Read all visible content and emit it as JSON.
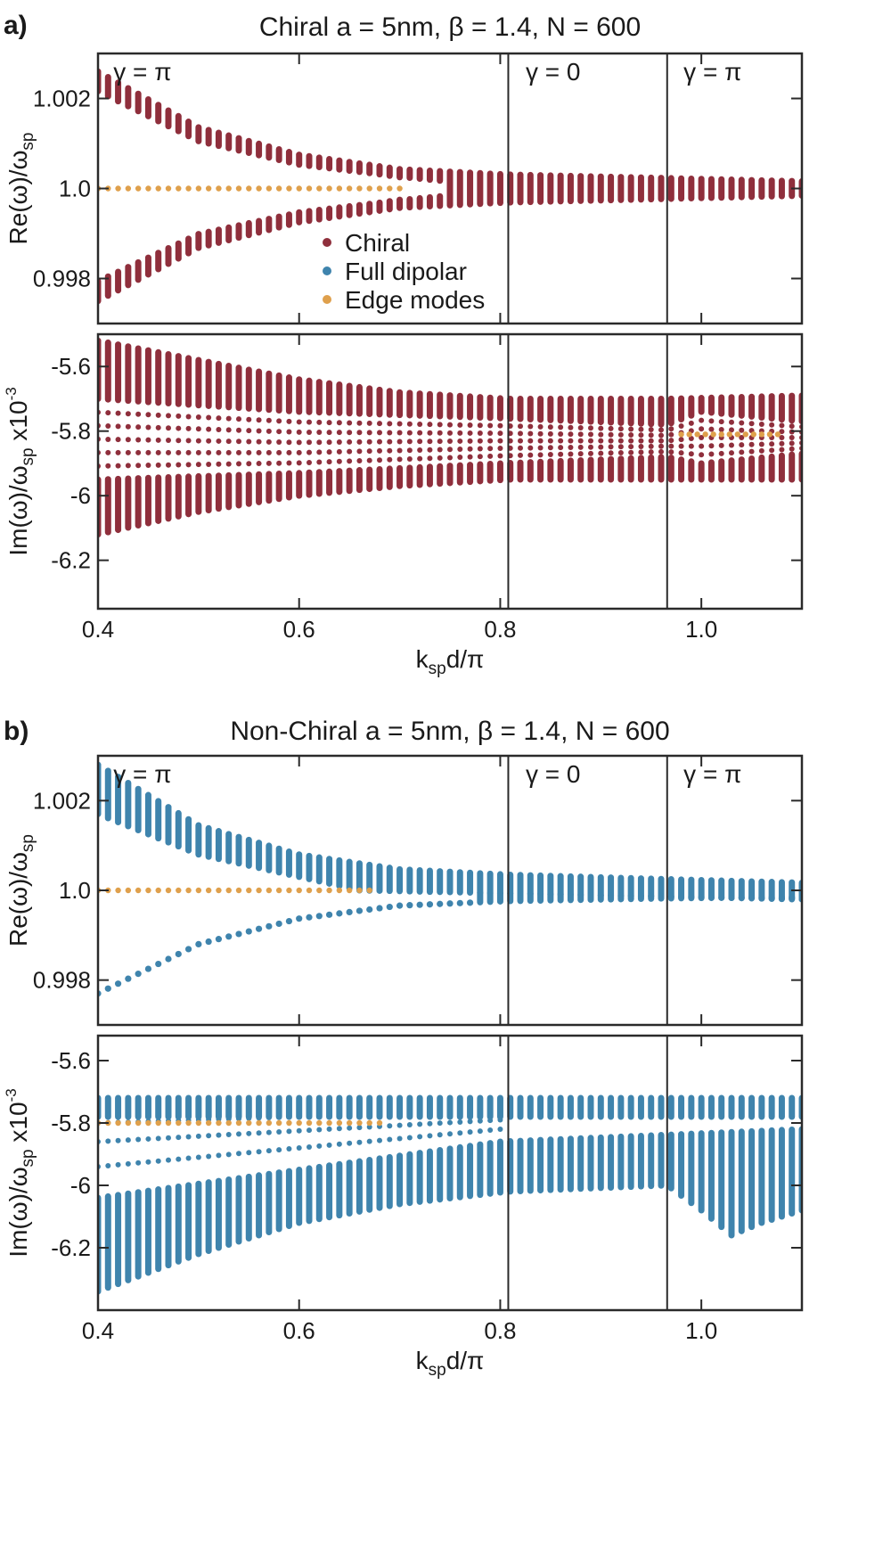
{
  "figure": {
    "panel_a_label": "a)",
    "panel_b_label": "b)"
  },
  "colors": {
    "chiral": "#8f2f3c",
    "full_dipolar": "#3f84ad",
    "edge_modes": "#dfa04c"
  },
  "chart_data": [
    {
      "id": "a_re",
      "type": "scatter",
      "title": "Chiral a = 5nm, β = 1.4, N = 600",
      "xlabel": "",
      "ylabel": "Re(ω)/ω",
      "ylabel_sub": "sp",
      "xlim": [
        0.4,
        1.1
      ],
      "ylim": [
        0.997,
        1.003
      ],
      "yticks": [
        0.998,
        1.0,
        1.002
      ],
      "ytick_labels": [
        "0.998",
        "1.0",
        "1.002"
      ],
      "vlines": [
        0.808,
        0.966
      ],
      "region_labels": [
        {
          "text": "γ = π",
          "x": 0.41
        },
        {
          "text": "γ = 0",
          "x": 0.82
        },
        {
          "text": "γ = π",
          "x": 0.977
        }
      ],
      "legend": [
        {
          "label": "Chiral",
          "color": "#8f2f3c"
        },
        {
          "label": "Full dipolar",
          "color": "#3f84ad"
        },
        {
          "label": "Edge modes",
          "color": "#dfa04c"
        }
      ],
      "series": [
        {
          "name": "Chiral",
          "color": "#8f2f3c",
          "style": "band",
          "x_range": [
            0.4,
            1.1
          ],
          "step": 0.01,
          "center": 1.0,
          "halfwidth_points": [
            [
              0.4,
              0.0026
            ],
            [
              0.5,
              0.00136
            ],
            [
              0.6,
              0.00075
            ],
            [
              0.7,
              0.00043
            ],
            [
              0.808,
              0.00031
            ],
            [
              0.95,
              0.00024
            ],
            [
              1.1,
              0.00016
            ]
          ],
          "lower_halfwidth_points": [
            [
              0.4,
              0.0025
            ],
            [
              0.5,
              0.00132
            ],
            [
              0.6,
              0.00075
            ],
            [
              0.7,
              0.00043
            ],
            [
              0.808,
              0.00031
            ],
            [
              0.95,
              0.00024
            ],
            [
              1.1,
              0.00016
            ]
          ],
          "gap_points": [
            [
              0.4,
              0.0018
            ],
            [
              0.5,
              0.0008
            ],
            [
              0.6,
              0.00035
            ],
            [
              0.7,
              0.00012
            ],
            [
              0.74,
              0.0
            ]
          ]
        },
        {
          "name": "Edge modes",
          "color": "#dfa04c",
          "style": "line",
          "x_range": [
            0.4,
            0.7
          ],
          "step": 0.01,
          "y": 1.0
        }
      ]
    },
    {
      "id": "a_im",
      "type": "scatter",
      "title": "",
      "xlabel": "k",
      "xlabel_sub": "sp",
      "xlabel_tail": "d/π",
      "ylabel": "Im(ω)/ω",
      "ylabel_sub": "sp",
      "ylabel_tail": " x10",
      "ylabel_sup": "-3",
      "xlim": [
        0.4,
        1.1
      ],
      "ylim": [
        -6.35,
        -5.5
      ],
      "xticks": [
        0.4,
        0.6,
        0.8,
        1.0
      ],
      "xtick_labels": [
        "0.4",
        "0.6",
        "0.8",
        "1.0"
      ],
      "yticks": [
        -6.2,
        -6.0,
        -5.8,
        -5.6
      ],
      "ytick_labels": [
        "-6.2",
        "-6",
        "-5.8",
        "-5.6"
      ],
      "vlines": [
        0.808,
        0.966
      ],
      "series": [
        {
          "name": "Chiral",
          "color": "#8f2f3c",
          "style": "imband",
          "x_range": [
            0.4,
            1.1
          ],
          "step": 0.01,
          "center": -5.83,
          "outer_top": [
            [
              0.4,
              -5.52
            ],
            [
              0.5,
              -5.58
            ],
            [
              0.6,
              -5.64
            ],
            [
              0.7,
              -5.68
            ],
            [
              0.808,
              -5.7
            ],
            [
              0.966,
              -5.7
            ],
            [
              1.1,
              -5.69
            ]
          ],
          "outer_bottom": [
            [
              0.4,
              -6.12
            ],
            [
              0.5,
              -6.05
            ],
            [
              0.6,
              -6.0
            ],
            [
              0.7,
              -5.97
            ],
            [
              0.808,
              -5.95
            ],
            [
              0.966,
              -5.95
            ],
            [
              1.1,
              -5.95
            ]
          ],
          "inner_top": [
            [
              0.4,
              -5.7
            ],
            [
              0.6,
              -5.74
            ],
            [
              0.8,
              -5.76
            ],
            [
              0.966,
              -5.78
            ],
            [
              1.0,
              -5.74
            ],
            [
              1.1,
              -5.77
            ]
          ],
          "inner_bottom": [
            [
              0.4,
              -5.95
            ],
            [
              0.6,
              -5.93
            ],
            [
              0.8,
              -5.9
            ],
            [
              0.966,
              -5.88
            ],
            [
              1.0,
              -5.9
            ],
            [
              1.1,
              -5.87
            ]
          ]
        },
        {
          "name": "Edge modes",
          "color": "#dfa04c",
          "style": "line",
          "x_range": [
            0.98,
            1.08
          ],
          "step": 0.008,
          "y": -5.81
        }
      ]
    },
    {
      "id": "b_re",
      "type": "scatter",
      "title": "Non-Chiral a = 5nm, β = 1.4, N = 600",
      "xlabel": "",
      "ylabel": "Re(ω)/ω",
      "ylabel_sub": "sp",
      "xlim": [
        0.4,
        1.1
      ],
      "ylim": [
        0.997,
        1.003
      ],
      "yticks": [
        0.998,
        1.0,
        1.002
      ],
      "ytick_labels": [
        "0.998",
        "1.0",
        "1.002"
      ],
      "vlines": [
        0.808,
        0.966
      ],
      "region_labels": [
        {
          "text": "γ = π",
          "x": 0.41
        },
        {
          "text": "γ = 0",
          "x": 0.82
        },
        {
          "text": "γ = π",
          "x": 0.977
        }
      ],
      "series": [
        {
          "name": "Full dipolar",
          "color": "#3f84ad",
          "style": "halfband",
          "x_range": [
            0.4,
            1.1
          ],
          "step": 0.01,
          "center": 1.0,
          "upper_outer": [
            [
              0.4,
              1.0028
            ],
            [
              0.5,
              1.00145
            ],
            [
              0.6,
              1.0008
            ],
            [
              0.7,
              1.00047
            ],
            [
              0.808,
              1.00035
            ],
            [
              0.966,
              1.00025
            ],
            [
              1.1,
              1.00017
            ]
          ],
          "upper_inner": [
            [
              0.4,
              1.0017
            ],
            [
              0.5,
              1.0008
            ],
            [
              0.6,
              1.0003
            ],
            [
              0.66,
              1.0
            ],
            [
              1.1,
              0.9998
            ]
          ],
          "lower_curve": [
            [
              0.4,
              0.9977
            ],
            [
              0.5,
              0.9988
            ],
            [
              0.6,
              0.99937
            ],
            [
              0.7,
              0.99966
            ],
            [
              0.808,
              0.99976
            ],
            [
              0.966,
              0.99982
            ],
            [
              1.1,
              0.99985
            ]
          ]
        },
        {
          "name": "Edge modes",
          "color": "#dfa04c",
          "style": "line",
          "x_range": [
            0.4,
            0.67
          ],
          "step": 0.01,
          "y": 1.0
        }
      ]
    },
    {
      "id": "b_im",
      "type": "scatter",
      "title": "",
      "xlabel": "k",
      "xlabel_sub": "sp",
      "xlabel_tail": "d/π",
      "ylabel": "Im(ω)/ω",
      "ylabel_sub": "sp",
      "ylabel_tail": " x10",
      "ylabel_sup": "-3",
      "xlim": [
        0.4,
        1.1
      ],
      "ylim": [
        -6.4,
        -5.52
      ],
      "xticks": [
        0.4,
        0.6,
        0.8,
        1.0
      ],
      "xtick_labels": [
        "0.4",
        "0.6",
        "0.8",
        "1.0"
      ],
      "yticks": [
        -6.2,
        -6.0,
        -5.8,
        -5.6
      ],
      "ytick_labels": [
        "-6.2",
        "-6",
        "-5.8",
        "-5.6"
      ],
      "vlines": [
        0.808,
        0.966
      ],
      "series": [
        {
          "name": "Full dipolar",
          "color": "#3f84ad",
          "style": "bim",
          "x_range": [
            0.4,
            1.1
          ],
          "step": 0.01,
          "top_band": [
            -5.72,
            -5.78
          ],
          "diag_lines": [
            [
              [
                0.4,
                -5.8
              ],
              [
                0.8,
                -5.76
              ]
            ],
            [
              [
                0.4,
                -5.86
              ],
              [
                0.8,
                -5.79
              ]
            ],
            [
              [
                0.4,
                -5.94
              ],
              [
                0.8,
                -5.82
              ]
            ]
          ],
          "bottom_top": [
            [
              0.4,
              -6.04
            ],
            [
              0.6,
              -5.95
            ],
            [
              0.8,
              -5.86
            ],
            [
              1.1,
              -5.82
            ]
          ],
          "bottom_bottom": [
            [
              0.4,
              -6.34
            ],
            [
              0.5,
              -6.22
            ],
            [
              0.6,
              -6.12
            ],
            [
              0.7,
              -6.06
            ],
            [
              0.808,
              -6.02
            ],
            [
              0.966,
              -6.0
            ],
            [
              1.1,
              -6.0
            ]
          ],
          "right_drop": [
            [
              0.966,
              -6.0
            ],
            [
              1.0,
              -6.08
            ],
            [
              1.03,
              -6.16
            ],
            [
              1.06,
              -6.12
            ],
            [
              1.1,
              -6.08
            ]
          ]
        },
        {
          "name": "Edge modes",
          "color": "#dfa04c",
          "style": "line",
          "x_range": [
            0.4,
            0.68
          ],
          "step": 0.01,
          "y": -5.8
        }
      ]
    }
  ]
}
